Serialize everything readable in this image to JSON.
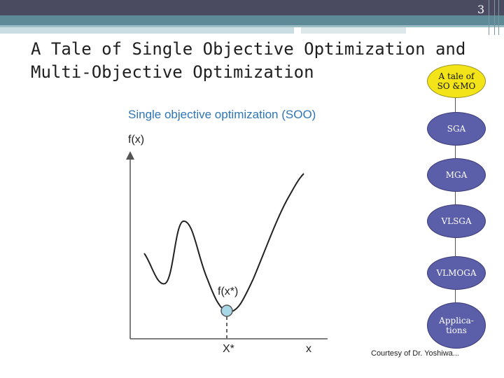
{
  "slide": {
    "number": "3",
    "title_line1": "A Tale of Single Objective Optimization and",
    "title_line2": "Multi-Objective Optimization"
  },
  "figure": {
    "title": "Single objective optimization (SOO)",
    "ylabel": "f(x)",
    "xlabel": "x",
    "optimum_x_label": "X*",
    "optimum_f_label": "f(x*)",
    "courtesy": "Courtesy of Dr. Yoshiwa..."
  },
  "flow": {
    "items": [
      {
        "line1": "A tale of",
        "line2": "SO &MO"
      },
      {
        "line1": "SGA",
        "line2": ""
      },
      {
        "line1": "MGA",
        "line2": ""
      },
      {
        "line1": "VLSGA",
        "line2": ""
      },
      {
        "line1": "VLMOGA",
        "line2": ""
      },
      {
        "line1": "Applica-",
        "line2": "tions"
      }
    ]
  },
  "colors": {
    "topbar": "#4a4b60",
    "accent": "#5d8a96",
    "chart_title": "#2e75b6",
    "node_first": "#f3e41a",
    "node": "#5b5ea8",
    "optimum_point": "#a8d8e8"
  }
}
